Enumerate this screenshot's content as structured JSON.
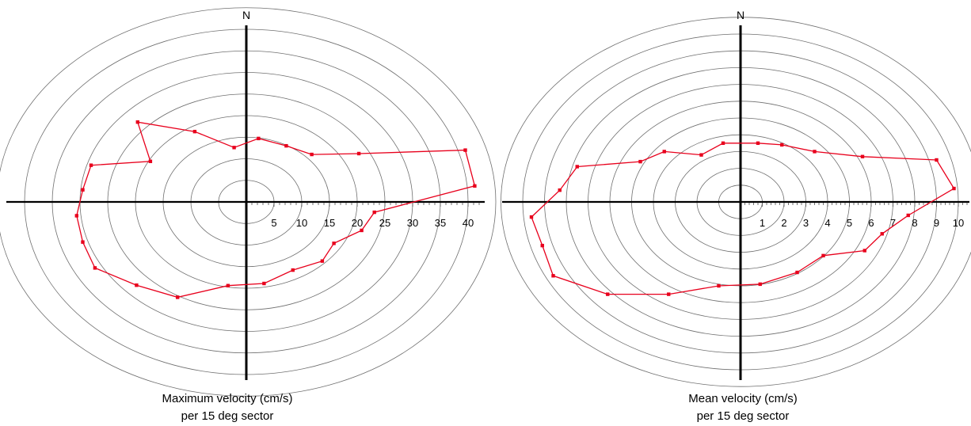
{
  "chart_data": [
    {
      "type": "polar-line",
      "north_label": "N",
      "caption_line1": "Maximum velocity (cm/s)",
      "caption_line2": "per 15 deg sector",
      "radial_ticks": [
        "5",
        "10",
        "15",
        "20",
        "25",
        "30",
        "35",
        "40"
      ],
      "series_color": "#e8001c",
      "ring_color": "#6f6f6f",
      "axis_color": "#000000",
      "points": [
        {
          "dx": 2.2,
          "dy": 14.7
        },
        {
          "dx": 7.2,
          "dy": 13.0
        },
        {
          "dx": 11.8,
          "dy": 11.0
        },
        {
          "dx": 20.3,
          "dy": 11.2
        },
        {
          "dx": 39.5,
          "dy": 12.0
        },
        {
          "dx": 41.2,
          "dy": 3.7
        },
        {
          "dx": 23.1,
          "dy": -2.4
        },
        {
          "dx": 20.8,
          "dy": -6.6
        },
        {
          "dx": 15.8,
          "dy": -9.6
        },
        {
          "dx": 13.7,
          "dy": -13.7
        },
        {
          "dx": 8.4,
          "dy": -15.8
        },
        {
          "dx": 3.2,
          "dy": -18.9
        },
        {
          "dx": -3.3,
          "dy": -19.4
        },
        {
          "dx": -12.4,
          "dy": -22.1
        },
        {
          "dx": -19.8,
          "dy": -19.3
        },
        {
          "dx": -27.3,
          "dy": -15.3
        },
        {
          "dx": -29.5,
          "dy": -9.3
        },
        {
          "dx": -30.6,
          "dy": -3.2
        },
        {
          "dx": -29.5,
          "dy": 2.8
        },
        {
          "dx": -28.0,
          "dy": 8.5
        },
        {
          "dx": -17.3,
          "dy": 9.4
        },
        {
          "dx": -19.6,
          "dy": 18.5
        },
        {
          "dx": -9.3,
          "dy": 16.3
        },
        {
          "dx": -2.2,
          "dy": 12.6
        }
      ]
    },
    {
      "type": "polar-line",
      "north_label": "N",
      "caption_line1": "Mean velocity (cm/s)",
      "caption_line2": "per 15 deg sector",
      "radial_ticks": [
        "1",
        "2",
        "3",
        "4",
        "5",
        "6",
        "7",
        "8",
        "9",
        "10"
      ],
      "series_color": "#e8001c",
      "ring_color": "#6f6f6f",
      "axis_color": "#000000",
      "points": [
        {
          "dx": 0.8,
          "dy": 3.5
        },
        {
          "dx": 1.9,
          "dy": 3.4
        },
        {
          "dx": 3.4,
          "dy": 3.0
        },
        {
          "dx": 5.6,
          "dy": 2.7
        },
        {
          "dx": 9.0,
          "dy": 2.5
        },
        {
          "dx": 9.8,
          "dy": 0.8
        },
        {
          "dx": 7.7,
          "dy": -0.8
        },
        {
          "dx": 6.5,
          "dy": -1.9
        },
        {
          "dx": 5.7,
          "dy": -2.9
        },
        {
          "dx": 3.8,
          "dy": -3.2
        },
        {
          "dx": 2.6,
          "dy": -4.2
        },
        {
          "dx": 0.9,
          "dy": -4.9
        },
        {
          "dx": -1.0,
          "dy": -5.0
        },
        {
          "dx": -3.3,
          "dy": -5.5
        },
        {
          "dx": -6.1,
          "dy": -5.5
        },
        {
          "dx": -8.6,
          "dy": -4.4
        },
        {
          "dx": -9.1,
          "dy": -2.6
        },
        {
          "dx": -9.6,
          "dy": -0.9
        },
        {
          "dx": -8.3,
          "dy": 0.7
        },
        {
          "dx": -7.5,
          "dy": 2.1
        },
        {
          "dx": -4.6,
          "dy": 2.4
        },
        {
          "dx": -3.5,
          "dy": 3.0
        },
        {
          "dx": -1.8,
          "dy": 2.8
        },
        {
          "dx": -0.8,
          "dy": 3.5
        }
      ]
    }
  ]
}
